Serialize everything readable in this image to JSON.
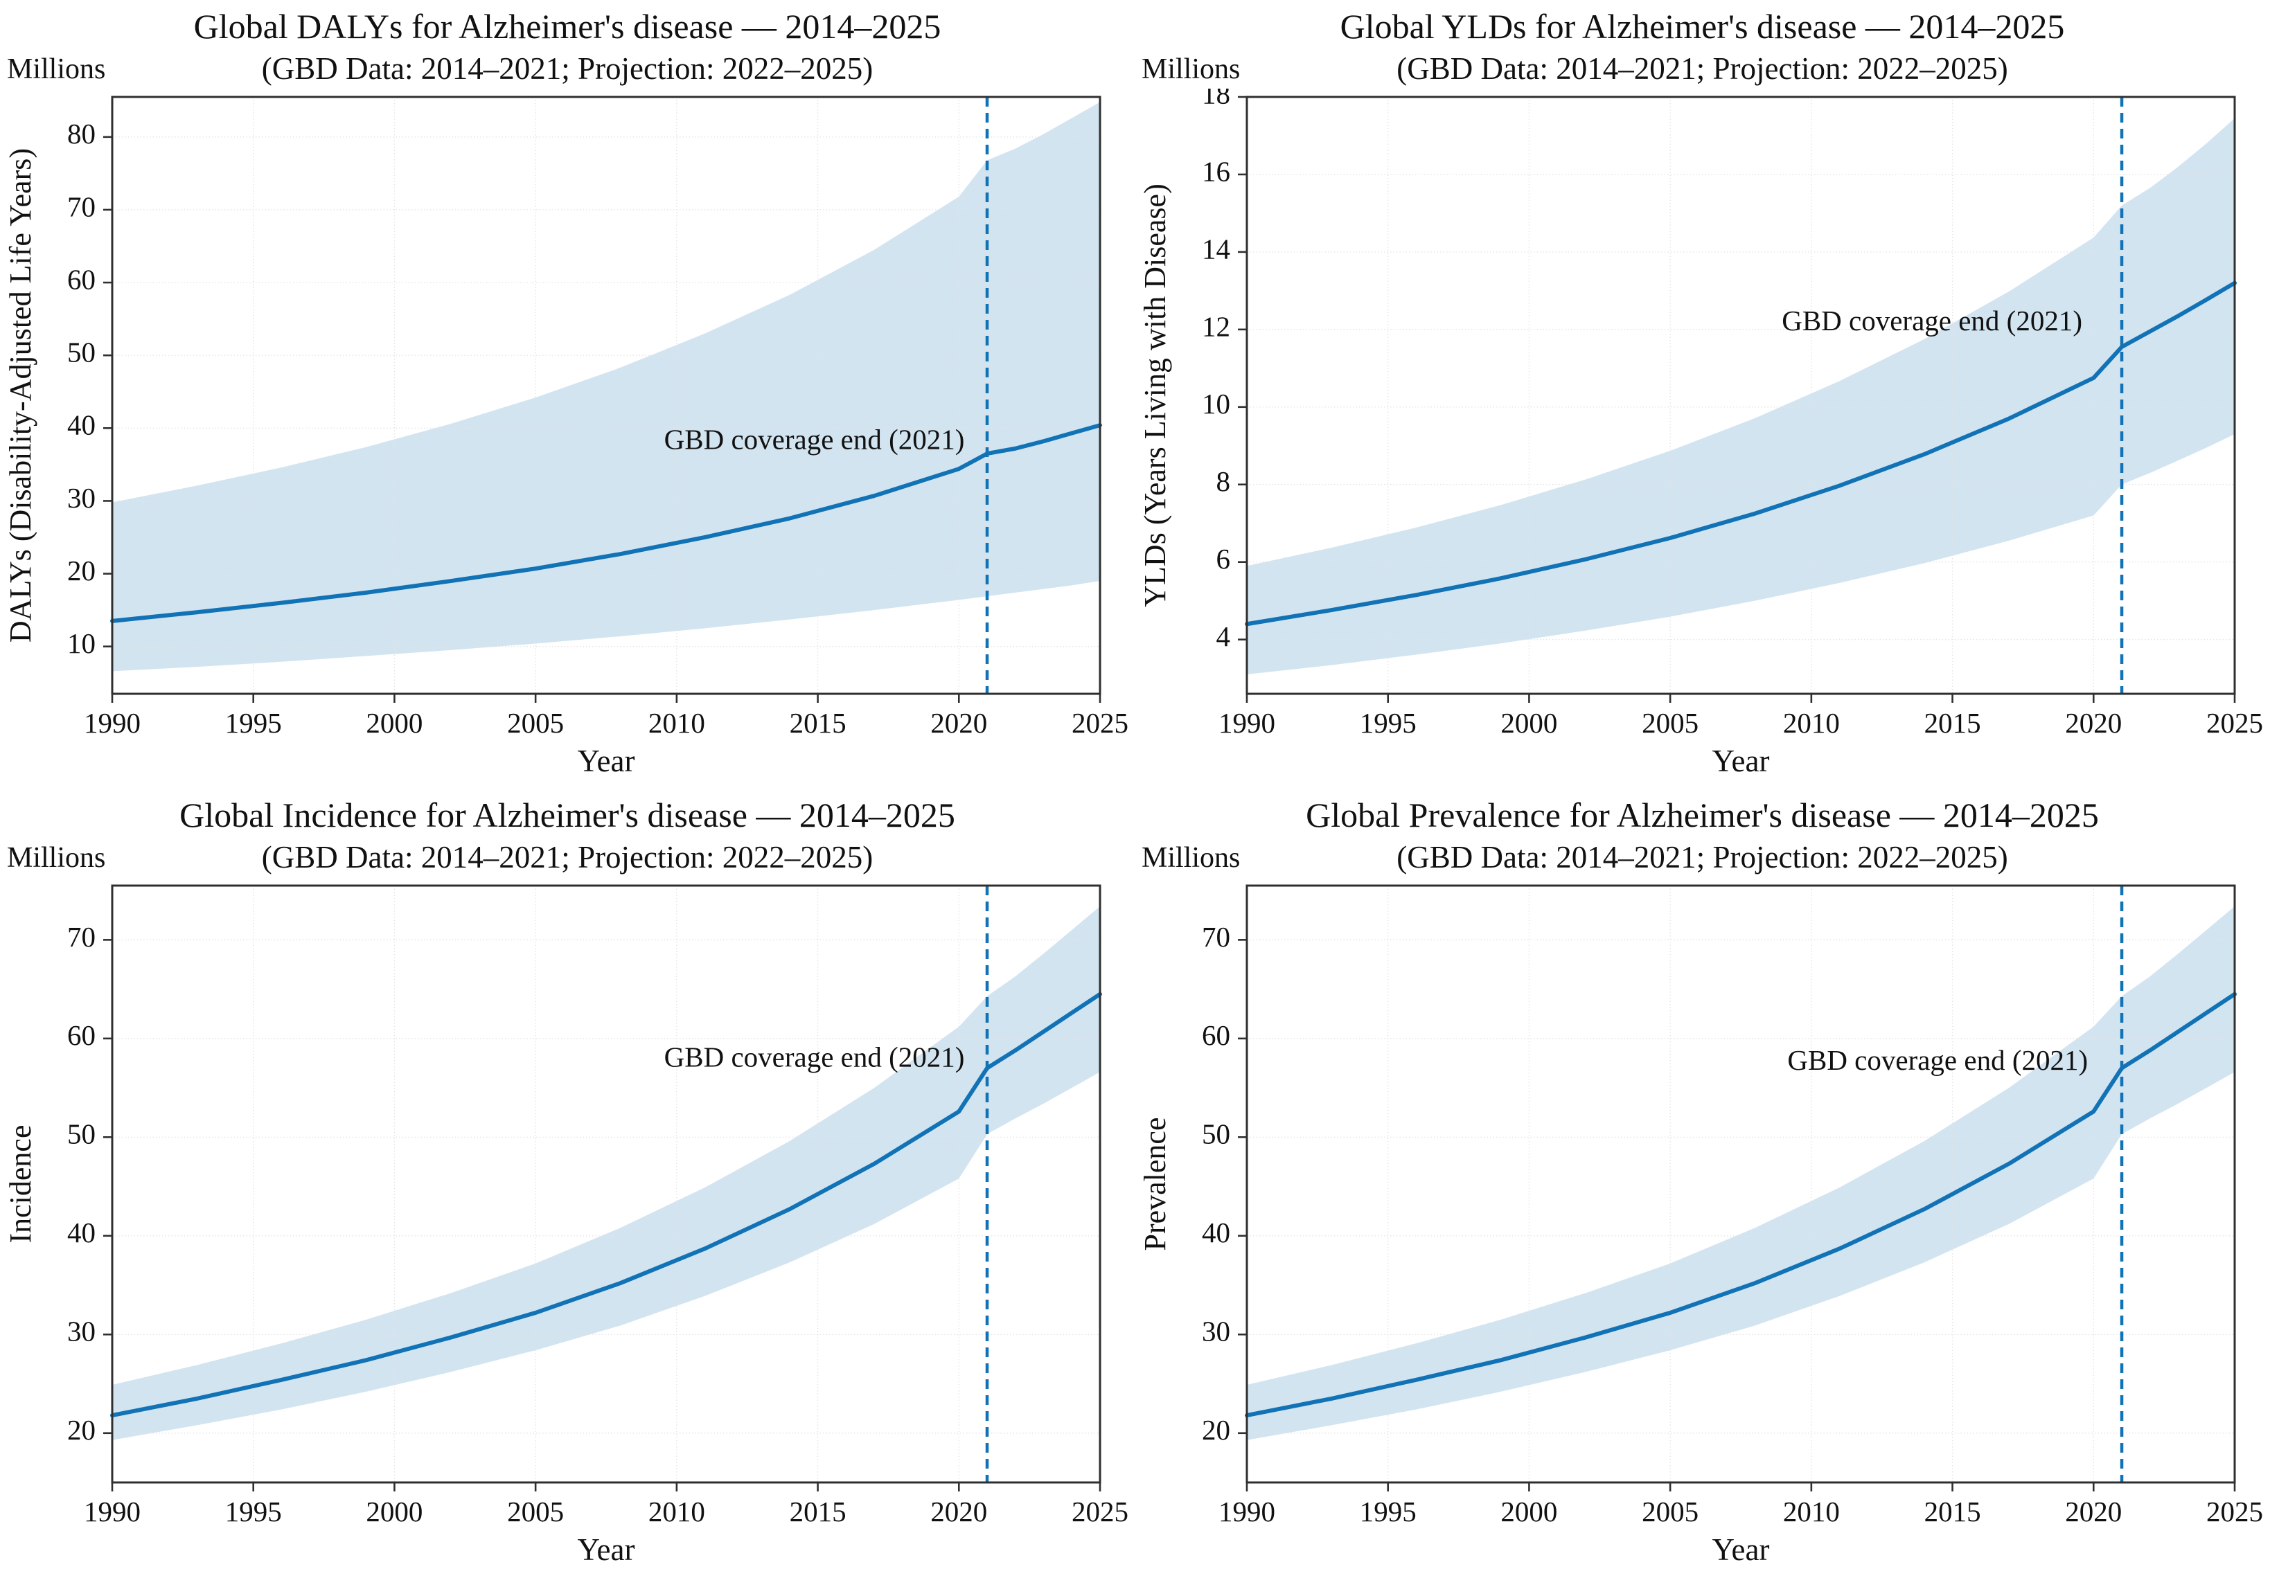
{
  "style": {
    "line_color": "#1173b6",
    "band_color": "#d3e4f1",
    "grid_color": "#e2e2e2",
    "frame_color": "#2f2f2f",
    "vline_color": "#1173b6",
    "background": "#ffffff"
  },
  "shared": {
    "xlim": [
      1990,
      2025
    ],
    "x_ticks": [
      1990,
      1995,
      2000,
      2005,
      2010,
      2015,
      2020,
      2025
    ],
    "vline_year": 2021
  },
  "chart_data": [
    {
      "type": "line",
      "title": "Global DALYs for Alzheimer's disease — 2014–2025",
      "subtitle": "(GBD Data: 2014–2021; Projection: 2022–2025)",
      "units_label": "Millions",
      "xlabel": "Year",
      "ylabel": "DALYs (Disability-Adjusted Life Years)",
      "ylim": [
        3.5,
        85.5
      ],
      "yticks": [
        10,
        20,
        30,
        40,
        50,
        60,
        70,
        80
      ],
      "x": [
        1990,
        1993,
        1996,
        1999,
        2002,
        2005,
        2008,
        2011,
        2014,
        2017,
        2020,
        2021,
        2022,
        2023,
        2024,
        2025
      ],
      "y": [
        13.5,
        14.7,
        16.0,
        17.4,
        19.0,
        20.7,
        22.7,
        25.0,
        27.6,
        30.7,
        34.4,
        36.5,
        37.2,
        38.2,
        39.3,
        40.4
      ],
      "upper": [
        29.8,
        32.1,
        34.6,
        37.4,
        40.6,
        44.2,
        48.3,
        53.0,
        58.3,
        64.5,
        71.8,
        76.8,
        78.4,
        80.4,
        82.6,
        84.8
      ],
      "lower": [
        6.6,
        7.2,
        7.9,
        8.7,
        9.5,
        10.4,
        11.4,
        12.5,
        13.7,
        15.0,
        16.4,
        16.9,
        17.4,
        17.9,
        18.4,
        19.0
      ],
      "annotation": {
        "text": "GBD coverage end (2021)",
        "x_end": 2020.2,
        "y": 38.0
      },
      "vline_year": 2021,
      "legend": "none",
      "grid": true
    },
    {
      "type": "line",
      "title": "Global YLDs for Alzheimer's disease — 2014–2025",
      "subtitle": "(GBD Data: 2014–2021; Projection: 2022–2025)",
      "units_label": "Millions",
      "xlabel": "Year",
      "ylabel": "YLDs (Years Living with Disease)",
      "ylim": [
        2.6,
        18.0
      ],
      "yticks": [
        4,
        6,
        8,
        10,
        12,
        14,
        16,
        18
      ],
      "x": [
        1990,
        1993,
        1996,
        1999,
        2002,
        2005,
        2008,
        2011,
        2014,
        2017,
        2020,
        2021,
        2022,
        2023,
        2024,
        2025
      ],
      "y": [
        4.4,
        4.76,
        5.15,
        5.58,
        6.07,
        6.62,
        7.25,
        7.97,
        8.78,
        9.7,
        10.75,
        11.55,
        11.95,
        12.35,
        12.77,
        13.2
      ],
      "upper": [
        5.9,
        6.37,
        6.89,
        7.47,
        8.13,
        8.87,
        9.71,
        10.67,
        11.75,
        12.98,
        14.37,
        15.2,
        15.65,
        16.2,
        16.8,
        17.45
      ],
      "lower": [
        3.1,
        3.34,
        3.61,
        3.9,
        4.23,
        4.59,
        5.0,
        5.46,
        5.97,
        6.55,
        7.2,
        8.0,
        8.3,
        8.62,
        8.95,
        9.3
      ],
      "annotation": {
        "text": "GBD coverage end (2021)",
        "x_end": 2019.6,
        "y": 12.15
      },
      "vline_year": 2021,
      "legend": "none",
      "grid": true
    },
    {
      "type": "line",
      "title": "Global Incidence for Alzheimer's disease — 2014–2025",
      "subtitle": "(GBD Data: 2014–2021; Projection: 2022–2025)",
      "units_label": "Millions",
      "xlabel": "Year",
      "ylabel": "Incidence",
      "ylim": [
        15,
        75.5
      ],
      "yticks": [
        20,
        30,
        40,
        50,
        60,
        70
      ],
      "x": [
        1990,
        1993,
        1996,
        1999,
        2002,
        2005,
        2008,
        2011,
        2014,
        2017,
        2020,
        2021,
        2022,
        2023,
        2024,
        2025
      ],
      "y": [
        21.8,
        23.5,
        25.4,
        27.4,
        29.7,
        32.2,
        35.2,
        38.7,
        42.7,
        47.3,
        52.6,
        57.0,
        58.8,
        60.7,
        62.6,
        64.5
      ],
      "upper": [
        24.9,
        26.9,
        29.1,
        31.5,
        34.2,
        37.2,
        40.8,
        44.9,
        49.6,
        55.0,
        61.2,
        64.3,
        66.3,
        68.6,
        71.0,
        73.4
      ],
      "lower": [
        19.3,
        20.8,
        22.4,
        24.2,
        26.2,
        28.4,
        30.9,
        33.9,
        37.3,
        41.2,
        45.8,
        50.3,
        51.9,
        53.4,
        55.0,
        56.6
      ],
      "annotation": {
        "text": "GBD coverage end (2021)",
        "x_end": 2020.2,
        "y": 57.8
      },
      "vline_year": 2021,
      "legend": "none",
      "grid": true
    },
    {
      "type": "line",
      "title": "Global Prevalence for Alzheimer's disease — 2014–2025",
      "subtitle": "(GBD Data: 2014–2021; Projection: 2022–2025)",
      "units_label": "Millions",
      "xlabel": "Year",
      "ylabel": "Prevalence",
      "ylim": [
        15,
        75.5
      ],
      "yticks": [
        20,
        30,
        40,
        50,
        60,
        70
      ],
      "x": [
        1990,
        1993,
        1996,
        1999,
        2002,
        2005,
        2008,
        2011,
        2014,
        2017,
        2020,
        2021,
        2022,
        2023,
        2024,
        2025
      ],
      "y": [
        21.8,
        23.5,
        25.4,
        27.4,
        29.7,
        32.2,
        35.2,
        38.7,
        42.7,
        47.3,
        52.6,
        57.0,
        58.8,
        60.7,
        62.6,
        64.5
      ],
      "upper": [
        24.9,
        26.9,
        29.1,
        31.5,
        34.2,
        37.2,
        40.8,
        44.9,
        49.6,
        55.0,
        61.2,
        64.3,
        66.3,
        68.6,
        71.0,
        73.4
      ],
      "lower": [
        19.3,
        20.8,
        22.4,
        24.2,
        26.2,
        28.4,
        30.9,
        33.9,
        37.3,
        41.2,
        45.8,
        50.3,
        51.9,
        53.4,
        55.0,
        56.6
      ],
      "annotation": {
        "text": "GBD coverage end (2021)",
        "x_end": 2019.8,
        "y": 57.5
      },
      "vline_year": 2021,
      "legend": "none",
      "grid": true
    }
  ]
}
